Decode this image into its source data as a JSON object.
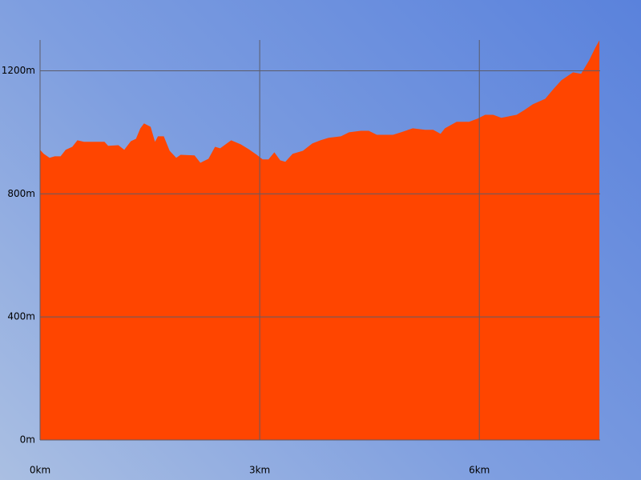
{
  "chart_data": {
    "type": "area",
    "x": [
      0,
      0.05,
      0.13,
      0.2,
      0.28,
      0.35,
      0.44,
      0.51,
      0.6,
      0.88,
      0.93,
      1.07,
      1.15,
      1.24,
      1.31,
      1.37,
      1.42,
      1.51,
      1.57,
      1.61,
      1.69,
      1.77,
      1.86,
      1.92,
      2.11,
      2.19,
      2.3,
      2.39,
      2.46,
      2.61,
      2.74,
      2.85,
      2.96,
      3.04,
      3.12,
      3.2,
      3.28,
      3.35,
      3.45,
      3.59,
      3.72,
      3.83,
      3.94,
      4.11,
      4.22,
      4.38,
      4.49,
      4.6,
      4.82,
      4.93,
      5.09,
      5.26,
      5.37,
      5.47,
      5.53,
      5.69,
      5.86,
      5.97,
      6.08,
      6.19,
      6.3,
      6.51,
      6.62,
      6.73,
      6.9,
      7.01,
      7.12,
      7.28,
      7.39,
      7.5,
      7.58,
      7.64
    ],
    "values": [
      943,
      930,
      917,
      922,
      922,
      943,
      953,
      974,
      969,
      969,
      956,
      958,
      943,
      971,
      979,
      1013,
      1029,
      1018,
      969,
      987,
      987,
      940,
      917,
      927,
      925,
      901,
      914,
      953,
      948,
      974,
      961,
      945,
      927,
      912,
      912,
      935,
      909,
      904,
      930,
      940,
      964,
      974,
      982,
      987,
      1000,
      1005,
      1005,
      992,
      992,
      1000,
      1013,
      1008,
      1008,
      995,
      1013,
      1034,
      1034,
      1044,
      1057,
      1057,
      1047,
      1057,
      1073,
      1091,
      1109,
      1140,
      1169,
      1195,
      1190,
      1234,
      1273,
      1299
    ],
    "color": "#ff4500",
    "xlim": [
      0,
      7.65
    ],
    "ylim": [
      0,
      1300
    ],
    "xticks": [
      {
        "value": 0,
        "label": "0km"
      },
      {
        "value": 3,
        "label": "3km"
      },
      {
        "value": 6,
        "label": "6km"
      }
    ],
    "yticks": [
      {
        "value": 0,
        "label": "0m"
      },
      {
        "value": 400,
        "label": "400m"
      },
      {
        "value": 800,
        "label": "800m"
      },
      {
        "value": 1200,
        "label": "1200m"
      }
    ],
    "grid": true
  }
}
